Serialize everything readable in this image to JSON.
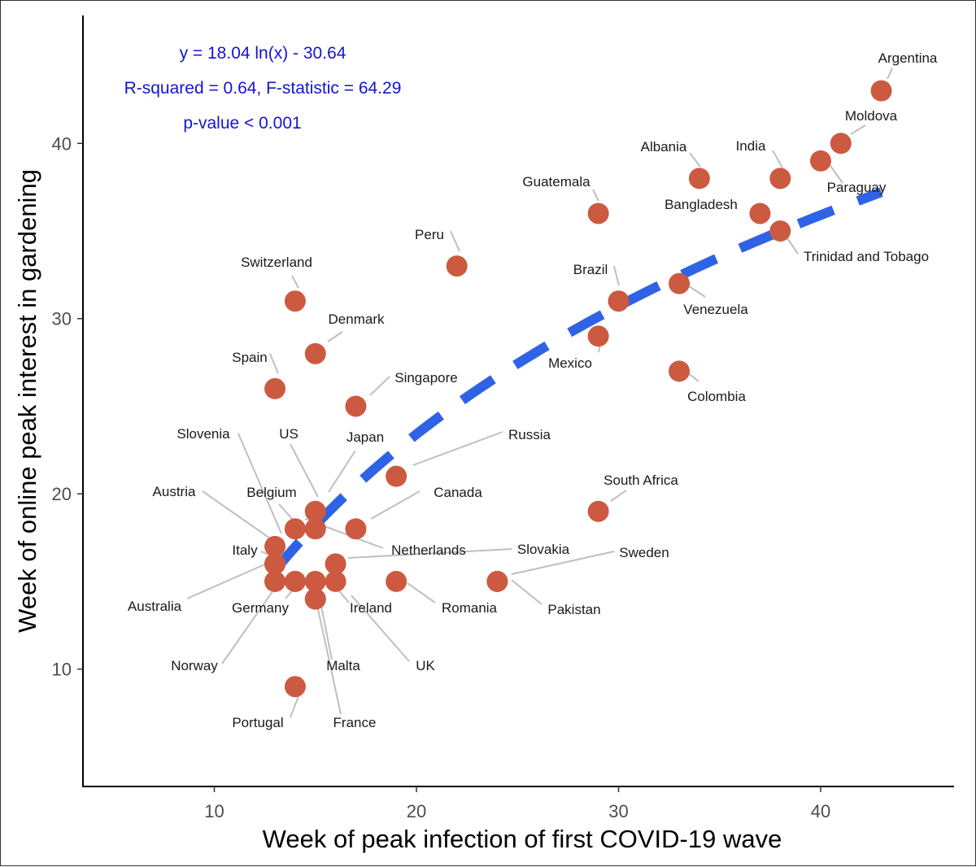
{
  "chart_data": {
    "type": "scatter",
    "xlabel": "Week of peak infection of first COVID-19 wave",
    "ylabel": "Week of online peak interest in gardening",
    "xlim": [
      3.5,
      46.6
    ],
    "ylim": [
      3.3,
      47.3
    ],
    "xticks": [
      10,
      20,
      30,
      40
    ],
    "yticks": [
      10,
      20,
      30,
      40
    ],
    "grid": false,
    "point_color": "#cb5a40",
    "trend_color": "#2f63e6",
    "leader_color": "#bfbfbf",
    "annotation_color": "#1414d6",
    "annotations": [
      "y = 18.04 ln(x) - 30.64",
      "R-squared = 0.64, F-statistic = 64.29",
      "p-value < 0.001"
    ],
    "trend": {
      "type": "log",
      "a": 18.04,
      "b": -30.64,
      "x_range": [
        13,
        43
      ]
    },
    "points": [
      {
        "label": "Argentina",
        "x": 43,
        "y": 43
      },
      {
        "label": "Moldova",
        "x": 41,
        "y": 40
      },
      {
        "label": "Paraguay",
        "x": 40,
        "y": 39
      },
      {
        "label": "India",
        "x": 38,
        "y": 38
      },
      {
        "label": "Albania",
        "x": 34,
        "y": 38
      },
      {
        "label": "Bangladesh",
        "x": 37,
        "y": 36
      },
      {
        "label": "Trinidad and Tobago",
        "x": 38,
        "y": 35
      },
      {
        "label": "Guatemala",
        "x": 29,
        "y": 36
      },
      {
        "label": "Peru",
        "x": 22,
        "y": 33
      },
      {
        "label": "Brazil",
        "x": 30,
        "y": 31
      },
      {
        "label": "Venezuela",
        "x": 33,
        "y": 32
      },
      {
        "label": "Mexico",
        "x": 29,
        "y": 29
      },
      {
        "label": "Colombia",
        "x": 33,
        "y": 27
      },
      {
        "label": "Switzerland",
        "x": 14,
        "y": 31
      },
      {
        "label": "Denmark",
        "x": 15,
        "y": 28
      },
      {
        "label": "Spain",
        "x": 13,
        "y": 26
      },
      {
        "label": "Singapore",
        "x": 17,
        "y": 25
      },
      {
        "label": "Russia",
        "x": 19,
        "y": 21
      },
      {
        "label": "South Africa",
        "x": 29,
        "y": 19
      },
      {
        "label": "US",
        "x": 15,
        "y": 19
      },
      {
        "label": "Japan",
        "x": 15,
        "y": 18
      },
      {
        "label": "Canada",
        "x": 17,
        "y": 18
      },
      {
        "label": "Belgium",
        "x": 14,
        "y": 18
      },
      {
        "label": "Slovenia",
        "x": 13,
        "y": 17
      },
      {
        "label": "Austria",
        "x": 13,
        "y": 16
      },
      {
        "label": "Italy",
        "x": 13,
        "y": 15
      },
      {
        "label": "Netherlands",
        "x": 14,
        "y": 15
      },
      {
        "label": "Slovakia",
        "x": 16,
        "y": 16
      },
      {
        "label": "Sweden",
        "x": 24,
        "y": 15
      },
      {
        "label": "Pakistan",
        "x": 24,
        "y": 15
      },
      {
        "label": "Australia",
        "x": 13,
        "y": 16
      },
      {
        "label": "Germany",
        "x": 14,
        "y": 15
      },
      {
        "label": "Ireland",
        "x": 15,
        "y": 15
      },
      {
        "label": "Romania",
        "x": 19,
        "y": 15
      },
      {
        "label": "UK",
        "x": 16,
        "y": 15
      },
      {
        "label": "Norway",
        "x": 13,
        "y": 15
      },
      {
        "label": "Malta",
        "x": 15,
        "y": 14
      },
      {
        "label": "France",
        "x": 15,
        "y": 14
      },
      {
        "label": "Portugal",
        "x": 14,
        "y": 9
      }
    ]
  }
}
